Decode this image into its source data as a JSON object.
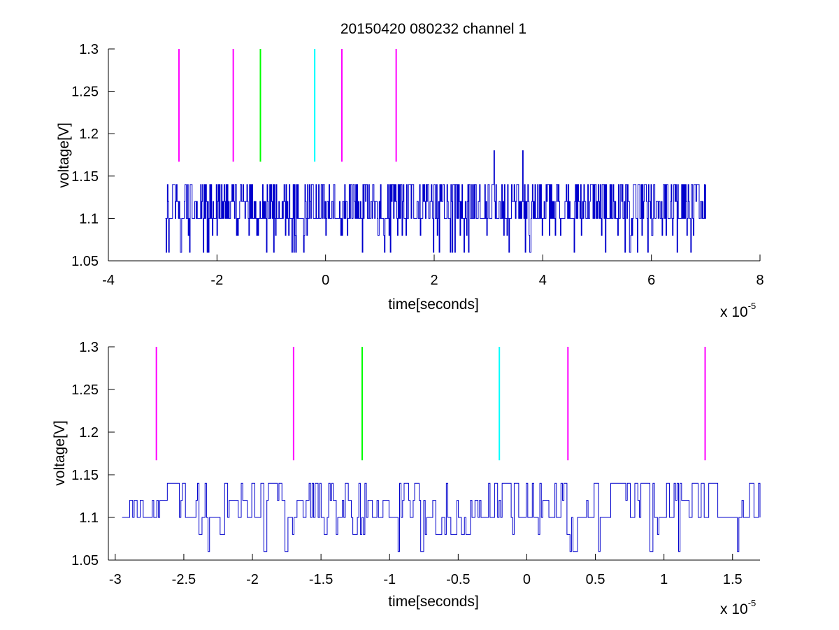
{
  "figure_title": "20150420 080232 channel 1",
  "colors": {
    "trace": "#0000cc",
    "magenta": "#ff00ff",
    "green": "#00ff00",
    "cyan": "#00ffff",
    "axis": "#000000"
  },
  "chart_data": [
    {
      "type": "line",
      "title": "20150420 080232 channel 1",
      "xlabel": "time[seconds]",
      "ylabel": "voltage[V]",
      "x_exponent_label": "x 10",
      "x_exponent_power": "-5",
      "xlim": [
        -4,
        8
      ],
      "ylim": [
        1.05,
        1.3
      ],
      "xticks": [
        -4,
        -2,
        0,
        2,
        4,
        6,
        8
      ],
      "xtick_labels": [
        "-4",
        "-2",
        "0",
        "2",
        "4",
        "6",
        "8"
      ],
      "yticks": [
        1.05,
        1.1,
        1.15,
        1.2,
        1.25,
        1.3
      ],
      "ytick_labels": [
        "1.05",
        "1.1",
        "1.15",
        "1.2",
        "1.25",
        "1.3"
      ],
      "grid": false,
      "series": [
        {
          "kind": "signal",
          "x_start": -2.95,
          "x_end": 7.0,
          "levels": [
            1.06,
            1.1,
            1.12,
            1.14
          ],
          "spikes": [
            {
              "x": 3.1,
              "y": 1.18
            },
            {
              "x": 3.63,
              "y": 1.18
            }
          ]
        }
      ],
      "markers": [
        {
          "x": -2.7,
          "y_from": 1.167,
          "y_to": 1.3,
          "color": "magenta"
        },
        {
          "x": -1.7,
          "y_from": 1.167,
          "y_to": 1.3,
          "color": "magenta"
        },
        {
          "x": -1.2,
          "y_from": 1.167,
          "y_to": 1.3,
          "color": "green"
        },
        {
          "x": -0.2,
          "y_from": 1.167,
          "y_to": 1.3,
          "color": "cyan"
        },
        {
          "x": 0.3,
          "y_from": 1.167,
          "y_to": 1.3,
          "color": "magenta"
        },
        {
          "x": 1.3,
          "y_from": 1.167,
          "y_to": 1.3,
          "color": "magenta"
        }
      ]
    },
    {
      "type": "line",
      "title": "",
      "xlabel": "time[seconds]",
      "ylabel": "voltage[V]",
      "x_exponent_label": "x 10",
      "x_exponent_power": "-5",
      "xlim": [
        -3.05,
        1.7
      ],
      "ylim": [
        1.05,
        1.3
      ],
      "xticks": [
        -3,
        -2.5,
        -2,
        -1.5,
        -1,
        -0.5,
        0,
        0.5,
        1,
        1.5
      ],
      "xtick_labels": [
        "-3",
        "-2.5",
        "-2",
        "-1.5",
        "-1",
        "-0.5",
        "0",
        "0.5",
        "1",
        "1.5"
      ],
      "yticks": [
        1.05,
        1.1,
        1.15,
        1.2,
        1.25,
        1.3
      ],
      "ytick_labels": [
        "1.05",
        "1.1",
        "1.15",
        "1.2",
        "1.25",
        "1.3"
      ],
      "grid": false,
      "series": [
        {
          "kind": "signal",
          "x_start": -2.95,
          "x_end": 1.7,
          "levels": [
            1.06,
            1.1,
            1.12,
            1.14
          ],
          "spikes": []
        }
      ],
      "markers": [
        {
          "x": -2.7,
          "y_from": 1.167,
          "y_to": 1.3,
          "color": "magenta"
        },
        {
          "x": -1.7,
          "y_from": 1.167,
          "y_to": 1.3,
          "color": "magenta"
        },
        {
          "x": -1.2,
          "y_from": 1.167,
          "y_to": 1.3,
          "color": "green"
        },
        {
          "x": -0.2,
          "y_from": 1.167,
          "y_to": 1.3,
          "color": "cyan"
        },
        {
          "x": 0.3,
          "y_from": 1.167,
          "y_to": 1.3,
          "color": "magenta"
        },
        {
          "x": 1.3,
          "y_from": 1.167,
          "y_to": 1.3,
          "color": "magenta"
        }
      ]
    }
  ]
}
